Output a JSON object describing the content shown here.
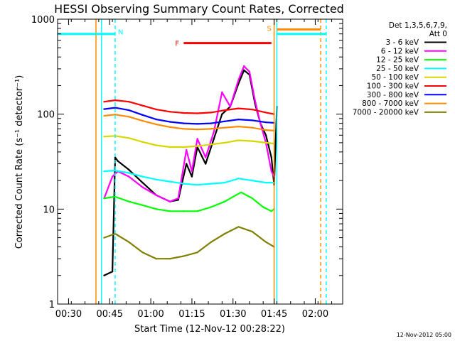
{
  "chart_data": {
    "type": "line",
    "title": "HESSI Observing Summary Count Rates, Corrected",
    "xlabel": "Start Time (12-Nov-12 00:28:22)",
    "ylabel": "Corrected Count Rate (s⁻¹ detector⁻¹)",
    "y_scale": "log",
    "ylim": [
      1,
      1000
    ],
    "xlim": [
      "00:26",
      "02:10"
    ],
    "x_ticks": [
      "00:30",
      "00:45",
      "01:00",
      "01:15",
      "01:30",
      "01:45",
      "02:00"
    ],
    "y_ticks": [
      "1",
      "10",
      "100",
      "1000"
    ],
    "legend": {
      "placement": "right",
      "header": [
        "Det 1,3,5,6,7,9,",
        "Att 0"
      ],
      "entries": [
        {
          "label": "3 - 6 keV",
          "color": "#000000"
        },
        {
          "label": "6 - 12 keV",
          "color": "#ff00ff"
        },
        {
          "label": "12 - 25 keV",
          "color": "#00ff00"
        },
        {
          "label": "25 - 50 keV",
          "color": "#00ffff"
        },
        {
          "label": "50 - 100 keV",
          "color": "#d7d700"
        },
        {
          "label": "100 - 300 keV",
          "color": "#ff0000"
        },
        {
          "label": "300 - 800 keV",
          "color": "#0000ff"
        },
        {
          "label": "800 - 7000 keV",
          "color": "#ff8c00"
        },
        {
          "label": "7000 - 20000 keV",
          "color": "#808000"
        }
      ]
    },
    "series": [
      {
        "name": "3 - 6 keV",
        "color": "#000000",
        "x": [
          "00:43",
          "00:46",
          "00:47",
          "00:48",
          "00:52",
          "00:57",
          "01:02",
          "01:07",
          "01:10",
          "01:13",
          "01:15",
          "01:17",
          "01:20",
          "01:23",
          "01:26",
          "01:29",
          "01:32",
          "01:34",
          "01:36",
          "01:38",
          "01:40",
          "01:42",
          "01:44",
          "01:45",
          "01:46"
        ],
        "y": [
          2,
          2.2,
          35,
          32,
          26,
          19,
          14,
          12,
          12.5,
          30,
          22,
          45,
          30,
          55,
          100,
          120,
          210,
          290,
          260,
          130,
          80,
          60,
          35,
          18,
          120
        ]
      },
      {
        "name": "6 - 12 keV",
        "color": "#ff00ff",
        "x": [
          "00:43",
          "00:46",
          "00:48",
          "00:52",
          "00:57",
          "01:02",
          "01:07",
          "01:10",
          "01:13",
          "01:15",
          "01:17",
          "01:20",
          "01:23",
          "01:26",
          "01:29",
          "01:32",
          "01:34",
          "01:36",
          "01:38",
          "01:40",
          "01:42",
          "01:44",
          "01:45"
        ],
        "y": [
          13,
          22,
          25,
          22,
          17,
          14,
          12,
          13,
          42,
          25,
          55,
          35,
          65,
          170,
          120,
          230,
          320,
          280,
          140,
          80,
          50,
          25,
          22
        ]
      },
      {
        "name": "12 - 25 keV",
        "color": "#00ff00",
        "x": [
          "00:43",
          "00:47",
          "00:52",
          "00:57",
          "01:02",
          "01:07",
          "01:12",
          "01:17",
          "01:22",
          "01:27",
          "01:31",
          "01:33",
          "01:37",
          "01:41",
          "01:44",
          "01:45"
        ],
        "y": [
          13,
          13.5,
          12,
          11,
          10,
          9.5,
          9.5,
          9.5,
          10.5,
          12,
          14,
          15,
          13,
          10.5,
          9.5,
          10
        ]
      },
      {
        "name": "25 - 50 keV",
        "color": "#00ffff",
        "x": [
          "00:43",
          "00:47",
          "00:52",
          "00:57",
          "01:02",
          "01:07",
          "01:12",
          "01:17",
          "01:22",
          "01:27",
          "01:32",
          "01:37",
          "01:42",
          "01:45"
        ],
        "y": [
          25,
          25.5,
          24,
          22,
          20.5,
          19.5,
          18.5,
          18,
          18.5,
          19,
          21,
          20,
          19,
          19
        ]
      },
      {
        "name": "50 - 100 keV",
        "color": "#d7d700",
        "x": [
          "00:43",
          "00:47",
          "00:52",
          "00:57",
          "01:02",
          "01:07",
          "01:12",
          "01:17",
          "01:22",
          "01:27",
          "01:32",
          "01:37",
          "01:42",
          "01:45"
        ],
        "y": [
          58,
          59,
          56,
          51,
          47,
          45,
          45,
          46,
          48,
          50,
          53,
          52,
          50,
          49
        ]
      },
      {
        "name": "100 - 300 keV",
        "color": "#ff0000",
        "x": [
          "00:43",
          "00:47",
          "00:52",
          "00:57",
          "01:02",
          "01:07",
          "01:12",
          "01:17",
          "01:22",
          "01:27",
          "01:32",
          "01:37",
          "01:42",
          "01:45"
        ],
        "y": [
          135,
          140,
          135,
          123,
          112,
          106,
          103,
          102,
          104,
          110,
          115,
          112,
          104,
          100
        ]
      },
      {
        "name": "300 - 800 keV",
        "color": "#0000ff",
        "x": [
          "00:43",
          "00:47",
          "00:52",
          "00:57",
          "01:02",
          "01:07",
          "01:12",
          "01:17",
          "01:22",
          "01:27",
          "01:32",
          "01:37",
          "01:42",
          "01:45"
        ],
        "y": [
          113,
          117,
          110,
          98,
          88,
          83,
          80,
          79,
          80,
          84,
          88,
          86,
          82,
          81
        ]
      },
      {
        "name": "800 - 7000 keV",
        "color": "#ff8c00",
        "x": [
          "00:43",
          "00:47",
          "00:52",
          "00:57",
          "01:02",
          "01:07",
          "01:12",
          "01:17",
          "01:22",
          "01:27",
          "01:32",
          "01:37",
          "01:42",
          "01:45"
        ],
        "y": [
          96,
          99,
          94,
          85,
          78,
          73,
          70,
          69,
          70,
          72,
          74,
          72,
          68,
          67
        ]
      },
      {
        "name": "7000 - 20000 keV",
        "color": "#808000",
        "x": [
          "00:43",
          "00:47",
          "00:52",
          "00:57",
          "01:02",
          "01:07",
          "01:12",
          "01:17",
          "01:22",
          "01:27",
          "01:32",
          "01:37",
          "01:42",
          "01:45"
        ],
        "y": [
          5,
          5.5,
          4.5,
          3.5,
          3,
          3,
          3.2,
          3.5,
          4.5,
          5.5,
          6.5,
          5.8,
          4.5,
          4
        ]
      }
    ],
    "annotations": {
      "night_label": "N",
      "flare_label": "F",
      "saa_label": "S",
      "night_bars": [
        {
          "x": [
            "00:26",
            "00:47"
          ],
          "y": 700
        },
        {
          "x": [
            "01:46",
            "02:04"
          ],
          "y": 700
        }
      ],
      "night_dashed_lines": [
        "00:47",
        "02:04"
      ],
      "flare_bar": {
        "x": [
          "01:12",
          "01:44"
        ],
        "y": 560
      },
      "saa_bar": {
        "x": [
          "01:46",
          "02:02"
        ],
        "y": 780
      },
      "saa_dashed_line": "02:02",
      "orange_solid_lines": [
        "00:40",
        "01:45"
      ],
      "cyan_solid_lines": [
        "00:42",
        "01:46"
      ]
    },
    "timestamp": "12-Nov-2012 05:00"
  }
}
